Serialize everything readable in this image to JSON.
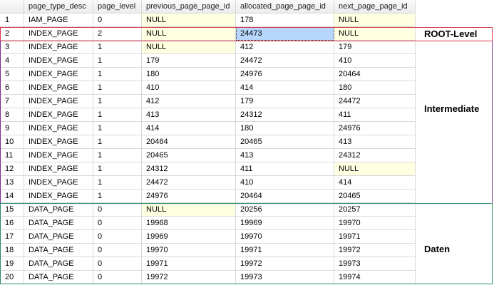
{
  "table": {
    "columns": [
      "page_type_desc",
      "page_level",
      "previous_page_page_id",
      "allocated_page_page_id",
      "next_page_page_id"
    ],
    "rows": [
      [
        1,
        "IAM_PAGE",
        0,
        "NULL",
        178,
        "NULL"
      ],
      [
        2,
        "INDEX_PAGE",
        2,
        "NULL",
        24473,
        "NULL"
      ],
      [
        3,
        "INDEX_PAGE",
        1,
        "NULL",
        412,
        179
      ],
      [
        4,
        "INDEX_PAGE",
        1,
        179,
        24472,
        410
      ],
      [
        5,
        "INDEX_PAGE",
        1,
        180,
        24976,
        20464
      ],
      [
        6,
        "INDEX_PAGE",
        1,
        410,
        414,
        180
      ],
      [
        7,
        "INDEX_PAGE",
        1,
        412,
        179,
        24472
      ],
      [
        8,
        "INDEX_PAGE",
        1,
        413,
        24312,
        411
      ],
      [
        9,
        "INDEX_PAGE",
        1,
        414,
        180,
        24976
      ],
      [
        10,
        "INDEX_PAGE",
        1,
        20464,
        20465,
        413
      ],
      [
        11,
        "INDEX_PAGE",
        1,
        20465,
        413,
        24312
      ],
      [
        12,
        "INDEX_PAGE",
        1,
        24312,
        411,
        "NULL"
      ],
      [
        13,
        "INDEX_PAGE",
        1,
        24472,
        410,
        414
      ],
      [
        14,
        "INDEX_PAGE",
        1,
        24976,
        20464,
        20465
      ],
      [
        15,
        "DATA_PAGE",
        0,
        "NULL",
        20256,
        20257
      ],
      [
        16,
        "DATA_PAGE",
        0,
        19968,
        19969,
        19970
      ],
      [
        17,
        "DATA_PAGE",
        0,
        19969,
        19970,
        19971
      ],
      [
        18,
        "DATA_PAGE",
        0,
        19970,
        19971,
        19972
      ],
      [
        19,
        "DATA_PAGE",
        0,
        19971,
        19972,
        19973
      ],
      [
        20,
        "DATA_PAGE",
        0,
        19972,
        19973,
        19974
      ]
    ]
  },
  "annotations": [
    "ROOT-Level",
    "Intermediate",
    "Daten"
  ]
}
